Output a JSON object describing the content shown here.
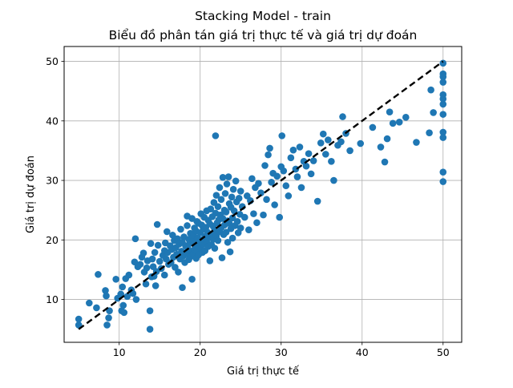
{
  "chart_data": {
    "type": "scatter",
    "title_line1": "Stacking Model - train",
    "title_line2": "Biểu đồ phân tán giá trị thực tế và giá trị dự đoán",
    "xlabel": "Giá trị thực tế",
    "ylabel": "Giá trị dự đoán",
    "xlim": [
      3.2,
      52.3
    ],
    "ylim": [
      2.8,
      52.5
    ],
    "xticks": [
      10,
      20,
      30,
      40,
      50
    ],
    "yticks": [
      10,
      20,
      30,
      40,
      50
    ],
    "grid": true,
    "point_color": "#1f77b4",
    "reference_line": {
      "style": "dashed",
      "color": "#000000",
      "x": [
        5,
        50
      ],
      "y": [
        5,
        50
      ]
    },
    "points": [
      [
        5.0,
        5.7
      ],
      [
        5.0,
        6.7
      ],
      [
        6.3,
        9.4
      ],
      [
        7.2,
        8.6
      ],
      [
        7.4,
        14.2
      ],
      [
        8.3,
        11.5
      ],
      [
        8.4,
        10.6
      ],
      [
        8.5,
        5.7
      ],
      [
        8.7,
        6.9
      ],
      [
        8.8,
        8.1
      ],
      [
        9.6,
        13.4
      ],
      [
        9.8,
        10.2
      ],
      [
        10.2,
        10.9
      ],
      [
        10.3,
        8.1
      ],
      [
        10.4,
        12.1
      ],
      [
        10.5,
        9.0
      ],
      [
        10.6,
        7.8
      ],
      [
        10.8,
        13.5
      ],
      [
        11.0,
        10.5
      ],
      [
        11.2,
        14.1
      ],
      [
        11.5,
        11.6
      ],
      [
        11.7,
        11.0
      ],
      [
        11.9,
        16.3
      ],
      [
        12.0,
        20.2
      ],
      [
        12.1,
        10.0
      ],
      [
        12.3,
        15.5
      ],
      [
        12.6,
        15.9
      ],
      [
        12.8,
        17.1
      ],
      [
        13.0,
        17.8
      ],
      [
        13.1,
        14.6
      ],
      [
        13.3,
        12.6
      ],
      [
        13.4,
        15.3
      ],
      [
        13.5,
        16.5
      ],
      [
        13.8,
        8.1
      ],
      [
        13.8,
        5.0
      ],
      [
        13.9,
        19.4
      ],
      [
        14.0,
        13.8
      ],
      [
        14.1,
        16.8
      ],
      [
        14.2,
        15.5
      ],
      [
        14.3,
        13.9
      ],
      [
        14.4,
        17.9
      ],
      [
        14.5,
        12.3
      ],
      [
        14.6,
        14.7
      ],
      [
        14.7,
        22.6
      ],
      [
        14.8,
        19.1
      ],
      [
        15.0,
        16.4
      ],
      [
        15.2,
        15.2
      ],
      [
        15.4,
        17.4
      ],
      [
        15.6,
        18.2
      ],
      [
        15.6,
        14.1
      ],
      [
        15.7,
        19.5
      ],
      [
        15.8,
        16.8
      ],
      [
        15.9,
        21.4
      ],
      [
        16.0,
        17.9
      ],
      [
        16.1,
        15.9
      ],
      [
        16.3,
        19.0
      ],
      [
        16.4,
        16.2
      ],
      [
        16.5,
        18.4
      ],
      [
        16.6,
        20.8
      ],
      [
        16.7,
        17.1
      ],
      [
        16.8,
        19.9
      ],
      [
        16.9,
        15.4
      ],
      [
        17.0,
        18.7
      ],
      [
        17.1,
        17.6
      ],
      [
        17.2,
        20.2
      ],
      [
        17.3,
        14.6
      ],
      [
        17.4,
        19.3
      ],
      [
        17.5,
        16.8
      ],
      [
        17.6,
        21.8
      ],
      [
        17.7,
        18.1
      ],
      [
        17.8,
        12.0
      ],
      [
        17.8,
        19.6
      ],
      [
        17.9,
        17.3
      ],
      [
        18.0,
        20.5
      ],
      [
        18.1,
        16.2
      ],
      [
        18.2,
        19.0
      ],
      [
        18.3,
        17.7
      ],
      [
        18.4,
        22.4
      ],
      [
        18.4,
        24.0
      ],
      [
        18.5,
        18.5
      ],
      [
        18.6,
        20.1
      ],
      [
        18.6,
        16.7
      ],
      [
        18.7,
        19.4
      ],
      [
        18.8,
        17.2
      ],
      [
        18.8,
        21.1
      ],
      [
        18.9,
        18.0
      ],
      [
        19.0,
        23.6
      ],
      [
        19.0,
        13.4
      ],
      [
        19.1,
        19.8
      ],
      [
        19.1,
        17.6
      ],
      [
        19.2,
        20.8
      ],
      [
        19.3,
        18.4
      ],
      [
        19.3,
        22.0
      ],
      [
        19.4,
        19.0
      ],
      [
        19.5,
        16.9
      ],
      [
        19.5,
        21.5
      ],
      [
        19.6,
        18.1
      ],
      [
        19.6,
        23.1
      ],
      [
        19.7,
        20.3
      ],
      [
        19.8,
        17.5
      ],
      [
        19.8,
        22.8
      ],
      [
        19.9,
        19.6
      ],
      [
        20.0,
        21.2
      ],
      [
        20.0,
        18.7
      ],
      [
        20.1,
        24.4
      ],
      [
        20.2,
        20.0
      ],
      [
        20.2,
        22.5
      ],
      [
        20.3,
        17.9
      ],
      [
        20.4,
        21.8
      ],
      [
        20.4,
        19.3
      ],
      [
        20.5,
        23.8
      ],
      [
        20.6,
        20.6
      ],
      [
        20.6,
        18.2
      ],
      [
        20.7,
        22.1
      ],
      [
        20.8,
        19.8
      ],
      [
        20.8,
        24.9
      ],
      [
        20.9,
        21.3
      ],
      [
        21.0,
        18.9
      ],
      [
        21.0,
        23.3
      ],
      [
        21.1,
        20.5
      ],
      [
        21.2,
        22.7
      ],
      [
        21.2,
        16.5
      ],
      [
        21.3,
        25.2
      ],
      [
        21.4,
        21.0
      ],
      [
        21.4,
        19.2
      ],
      [
        21.5,
        23.9
      ],
      [
        21.6,
        20.1
      ],
      [
        21.6,
        22.3
      ],
      [
        21.7,
        26.3
      ],
      [
        21.8,
        21.7
      ],
      [
        21.8,
        18.6
      ],
      [
        21.9,
        37.5
      ],
      [
        21.9,
        24.5
      ],
      [
        22.0,
        27.5
      ],
      [
        22.0,
        20.7
      ],
      [
        22.1,
        22.9
      ],
      [
        22.2,
        25.6
      ],
      [
        22.2,
        19.9
      ],
      [
        22.3,
        23.4
      ],
      [
        22.4,
        28.8
      ],
      [
        22.4,
        21.4
      ],
      [
        22.5,
        24.2
      ],
      [
        22.6,
        22.1
      ],
      [
        22.6,
        26.8
      ],
      [
        22.7,
        17.0
      ],
      [
        22.8,
        30.5
      ],
      [
        22.8,
        23.6
      ],
      [
        22.9,
        20.9
      ],
      [
        23.0,
        25.0
      ],
      [
        23.0,
        22.5
      ],
      [
        23.1,
        27.8
      ],
      [
        23.2,
        21.3
      ],
      [
        23.2,
        24.7
      ],
      [
        23.3,
        29.4
      ],
      [
        23.4,
        23.2
      ],
      [
        23.4,
        19.6
      ],
      [
        23.5,
        30.6
      ],
      [
        23.6,
        26.1
      ],
      [
        23.6,
        22.8
      ],
      [
        23.7,
        18.0
      ],
      [
        23.8,
        25.5
      ],
      [
        23.8,
        21.9
      ],
      [
        23.9,
        27.2
      ],
      [
        24.0,
        23.7
      ],
      [
        24.0,
        20.3
      ],
      [
        24.1,
        28.5
      ],
      [
        24.2,
        24.9
      ],
      [
        24.3,
        22.4
      ],
      [
        24.4,
        29.9
      ],
      [
        24.5,
        26.4
      ],
      [
        24.6,
        23.1
      ],
      [
        24.7,
        21.2
      ],
      [
        24.8,
        27.0
      ],
      [
        24.9,
        24.3
      ],
      [
        25.0,
        22.0
      ],
      [
        25.0,
        28.2
      ],
      [
        25.2,
        25.6
      ],
      [
        25.5,
        23.8
      ],
      [
        25.8,
        27.4
      ],
      [
        26.0,
        21.7
      ],
      [
        26.2,
        26.6
      ],
      [
        26.4,
        30.3
      ],
      [
        26.6,
        24.4
      ],
      [
        26.8,
        28.8
      ],
      [
        27.0,
        22.9
      ],
      [
        27.2,
        29.5
      ],
      [
        27.5,
        27.9
      ],
      [
        27.8,
        24.2
      ],
      [
        28.0,
        32.5
      ],
      [
        28.2,
        26.8
      ],
      [
        28.4,
        34.3
      ],
      [
        28.6,
        35.4
      ],
      [
        28.8,
        29.7
      ],
      [
        29.0,
        31.2
      ],
      [
        29.2,
        25.9
      ],
      [
        29.5,
        30.7
      ],
      [
        29.8,
        23.8
      ],
      [
        30.0,
        32.3
      ],
      [
        30.1,
        37.5
      ],
      [
        30.3,
        31.6
      ],
      [
        30.6,
        29.1
      ],
      [
        30.9,
        27.4
      ],
      [
        31.2,
        33.8
      ],
      [
        31.5,
        35.1
      ],
      [
        31.8,
        31.9
      ],
      [
        32.0,
        30.6
      ],
      [
        32.3,
        35.6
      ],
      [
        32.5,
        28.8
      ],
      [
        32.8,
        33.2
      ],
      [
        33.1,
        32.4
      ],
      [
        33.4,
        34.5
      ],
      [
        33.7,
        31.1
      ],
      [
        34.0,
        33.3
      ],
      [
        34.5,
        26.5
      ],
      [
        34.9,
        36.3
      ],
      [
        35.2,
        37.8
      ],
      [
        35.5,
        34.4
      ],
      [
        35.8,
        36.8
      ],
      [
        36.2,
        33.2
      ],
      [
        36.5,
        30.0
      ],
      [
        37.0,
        35.9
      ],
      [
        37.4,
        36.5
      ],
      [
        37.6,
        40.7
      ],
      [
        38.0,
        37.9
      ],
      [
        38.5,
        35.0
      ],
      [
        39.8,
        36.2
      ],
      [
        41.3,
        38.9
      ],
      [
        42.3,
        35.6
      ],
      [
        42.8,
        33.1
      ],
      [
        43.1,
        37.0
      ],
      [
        43.4,
        41.5
      ],
      [
        43.8,
        39.6
      ],
      [
        44.6,
        39.8
      ],
      [
        45.4,
        40.6
      ],
      [
        46.7,
        36.4
      ],
      [
        48.3,
        38.0
      ],
      [
        48.5,
        45.2
      ],
      [
        48.8,
        41.4
      ],
      [
        50.0,
        49.7
      ],
      [
        50.0,
        47.9
      ],
      [
        50.0,
        47.4
      ],
      [
        50.0,
        46.5
      ],
      [
        50.0,
        44.4
      ],
      [
        50.0,
        43.7
      ],
      [
        50.0,
        42.8
      ],
      [
        50.0,
        41.1
      ],
      [
        50.0,
        38.1
      ],
      [
        50.0,
        37.2
      ],
      [
        50.0,
        31.4
      ],
      [
        50.0,
        29.8
      ]
    ]
  }
}
